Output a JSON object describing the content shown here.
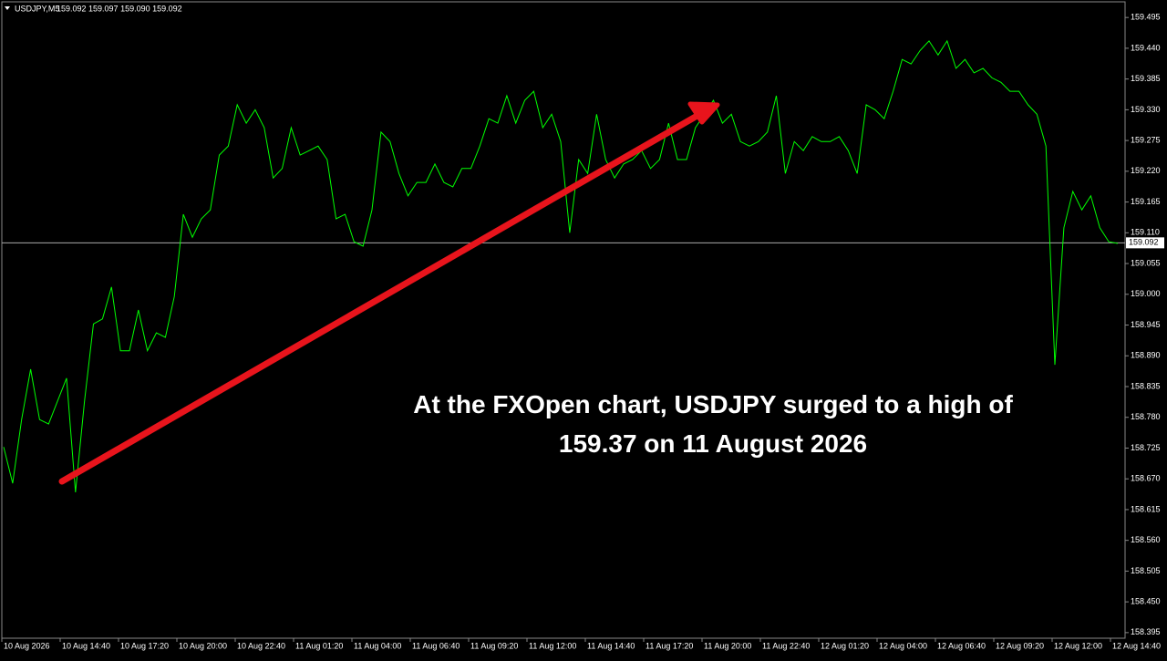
{
  "chart_data": {
    "type": "line",
    "title": "USDJPY,M5",
    "quote": "159.092 159.097 159.090 159.092",
    "current_price": 159.092,
    "annotation": [
      "At the FXOpen chart, USDJPY surged to a high of",
      "159.37 on 11 August 2026"
    ],
    "x_axis_labels": [
      "10 Aug 2026",
      "10 Aug 14:40",
      "10 Aug 17:20",
      "10 Aug 20:00",
      "10 Aug 22:40",
      "11 Aug 01:20",
      "11 Aug 04:00",
      "11 Aug 06:40",
      "11 Aug 09:20",
      "11 Aug 12:00",
      "11 Aug 14:40",
      "11 Aug 17:20",
      "11 Aug 20:00",
      "11 Aug 22:40",
      "12 Aug 01:20",
      "12 Aug 04:00",
      "12 Aug 06:40",
      "12 Aug 09:20",
      "12 Aug 12:00",
      "12 Aug 14:40"
    ],
    "series": [
      {
        "name": "USDJPY",
        "color": "#00ff00",
        "values": [
          158.727,
          158.662,
          158.776,
          158.866,
          158.776,
          158.768,
          158.809,
          158.85,
          158.646,
          158.809,
          158.947,
          158.956,
          159.013,
          158.899,
          158.899,
          158.972,
          158.899,
          158.931,
          158.923,
          158.996,
          159.143,
          159.102,
          159.135,
          159.151,
          159.249,
          159.265,
          159.339,
          159.306,
          159.33,
          159.298,
          159.208,
          159.225,
          159.298,
          159.249,
          159.257,
          159.265,
          159.241,
          159.135,
          159.143,
          159.094,
          159.086,
          159.151,
          159.29,
          159.273,
          159.216,
          159.176,
          159.2,
          159.2,
          159.233,
          159.2,
          159.192,
          159.225,
          159.225,
          159.265,
          159.314,
          159.306,
          159.355,
          159.306,
          159.347,
          159.363,
          159.298,
          159.322,
          159.273,
          159.11,
          159.241,
          159.216,
          159.322,
          159.241,
          159.208,
          159.233,
          159.241,
          159.257,
          159.225,
          159.241,
          159.306,
          159.241,
          159.241,
          159.298,
          159.322,
          159.347,
          159.306,
          159.322,
          159.273,
          159.265,
          159.273,
          159.29,
          159.355,
          159.216,
          159.273,
          159.257,
          159.282,
          159.273,
          159.273,
          159.282,
          159.257,
          159.216,
          159.339,
          159.33,
          159.314,
          159.363,
          159.42,
          159.412,
          159.436,
          159.453,
          159.428,
          159.453,
          159.404,
          159.42,
          159.396,
          159.404,
          159.387,
          159.379,
          159.363,
          159.363,
          159.339,
          159.322,
          159.265,
          158.874,
          159.119,
          159.184,
          159.151,
          159.176,
          159.119,
          159.094,
          159.091
        ]
      }
    ],
    "ylim": [
      158.385,
      159.523
    ],
    "yticks": [
      158.395,
      {
        "value": 158.45,
        "label": "158.450"
      },
      158.505,
      {
        "value": 158.56,
        "label": "158.560"
      },
      158.615,
      {
        "value": 158.67,
        "label": "158.670"
      },
      158.725,
      {
        "value": 158.78,
        "label": "158.780"
      },
      158.835,
      {
        "value": 158.89,
        "label": "158.890"
      },
      158.945,
      {
        "value": 159,
        "label": "159.000"
      },
      159.055,
      {
        "value": 159.11,
        "label": "159.110"
      },
      159.165,
      {
        "value": 159.22,
        "label": "159.220"
      },
      159.275,
      {
        "value": 159.33,
        "label": "159.330"
      },
      159.385,
      {
        "value": 159.44,
        "label": "159.440"
      },
      159.495
    ],
    "grid": false
  }
}
